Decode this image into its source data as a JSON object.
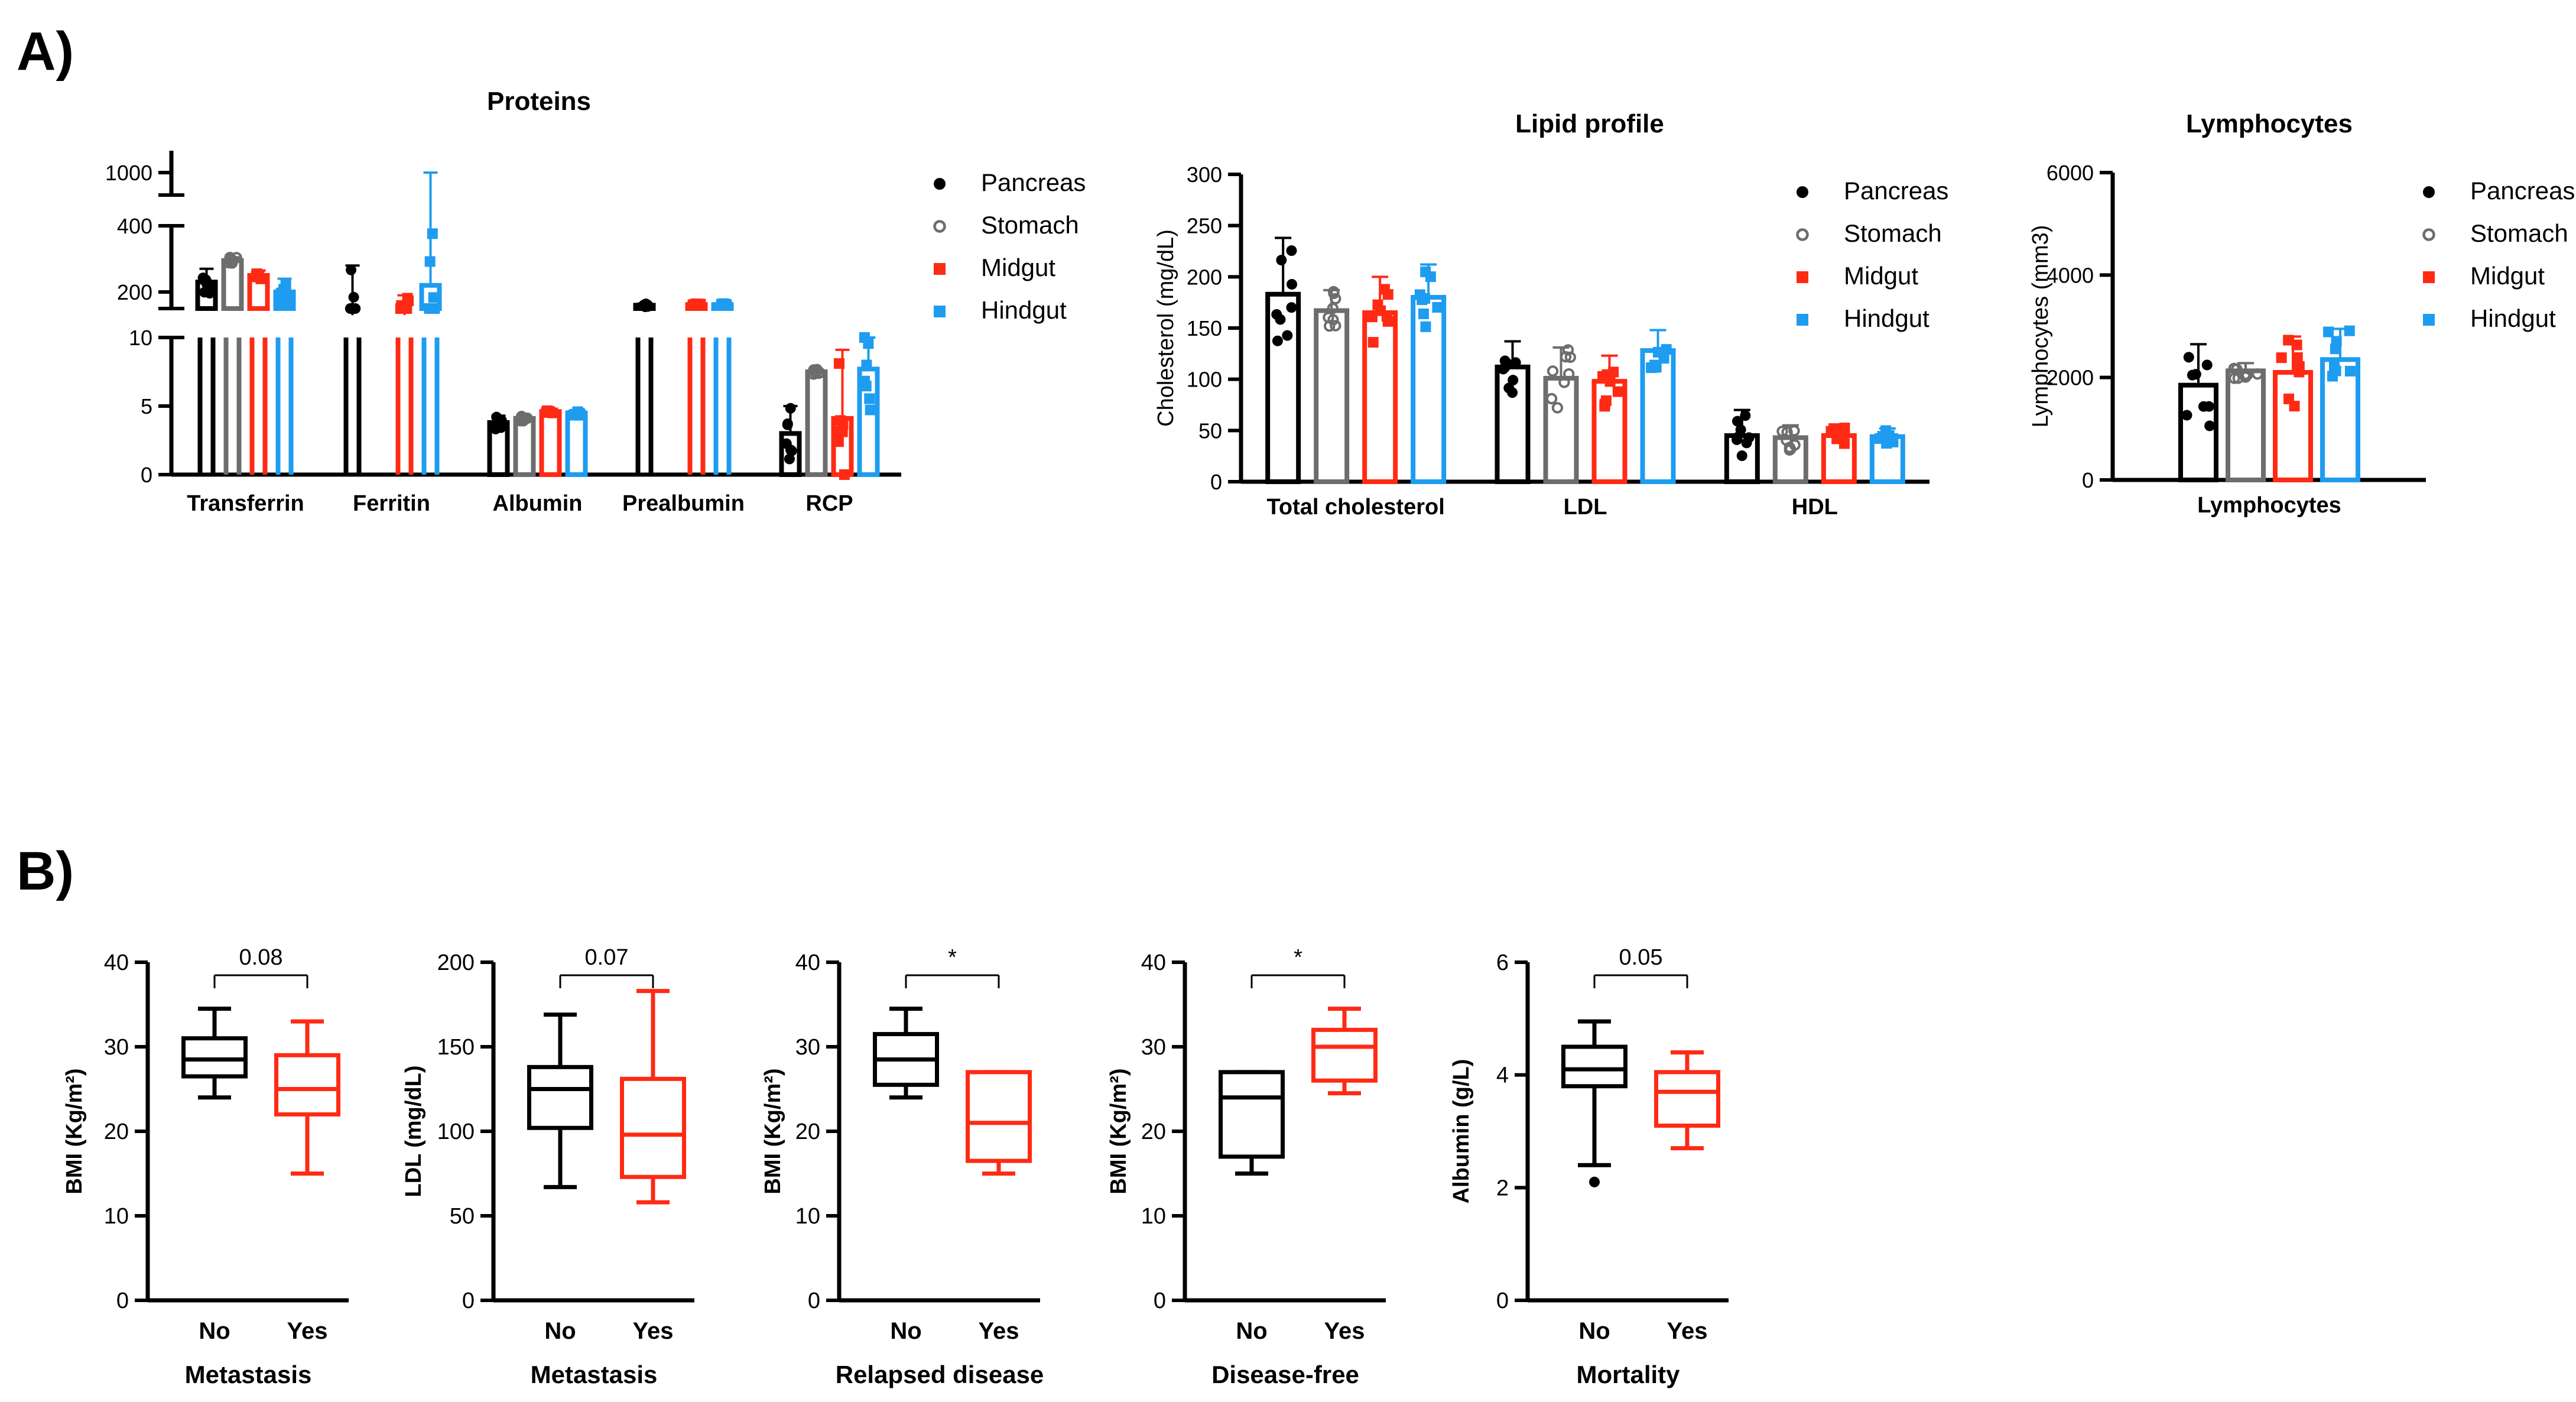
{
  "panel_labels": {
    "a": "A)",
    "b": "B)"
  },
  "colors": {
    "pancreas": "#000000",
    "stomach": "#6d6d6d",
    "midgut": "#ff2a14",
    "hindgut": "#1e9cf0"
  },
  "legend": [
    {
      "name": "Pancreas",
      "marker": "filled-circle",
      "color": "#000000"
    },
    {
      "name": "Stomach",
      "marker": "open-circle",
      "color": "#6d6d6d"
    },
    {
      "name": "Midgut",
      "marker": "square",
      "color": "#ff2a14"
    },
    {
      "name": "Hindgut",
      "marker": "square",
      "color": "#1e9cf0"
    }
  ],
  "chart_data": [
    {
      "id": "proteins",
      "type": "bar",
      "title": "Proteins",
      "ylabel": "",
      "categories": [
        "Transferrin",
        "Ferritin",
        "Albumin",
        "Prealbumin",
        "RCP"
      ],
      "axis": {
        "segments": [
          [
            0,
            10
          ],
          [
            150,
            400
          ],
          [
            1000,
            1000
          ]
        ],
        "ticks": [
          0,
          5,
          10,
          200,
          400,
          1000
        ]
      },
      "series": [
        {
          "name": "Pancreas",
          "values": [
            230,
            130,
            3.8,
            160,
            3.0
          ],
          "sd": [
            40,
            150,
            0.5,
            5,
            2
          ]
        },
        {
          "name": "Stomach",
          "values": [
            295,
            0,
            4.1,
            0,
            7.5
          ],
          "sd": [
            10,
            0,
            0.2,
            0,
            0.2
          ]
        },
        {
          "name": "Midgut",
          "values": [
            250,
            130,
            4.6,
            162,
            4.1
          ],
          "sd": [
            15,
            60,
            0.1,
            3,
            5
          ]
        },
        {
          "name": "Hindgut",
          "values": [
            200,
            220,
            4.5,
            162,
            7.7
          ],
          "sd": [
            40,
            420,
            0.2,
            3,
            4
          ]
        }
      ]
    },
    {
      "id": "lipid",
      "type": "bar",
      "title": "Lipid profile",
      "ylabel": "Cholesterol (mg/dL)",
      "categories": [
        "Total cholesterol",
        "LDL",
        "HDL"
      ],
      "ylim": [
        0,
        300
      ],
      "ticks": [
        0,
        50,
        100,
        150,
        200,
        250,
        300
      ],
      "series": [
        {
          "name": "Pancreas",
          "values": [
            183,
            112,
            45
          ],
          "sd": [
            55,
            25,
            25
          ]
        },
        {
          "name": "Stomach",
          "values": [
            167,
            101,
            43
          ],
          "sd": [
            20,
            30,
            12
          ]
        },
        {
          "name": "Midgut",
          "values": [
            165,
            98,
            45
          ],
          "sd": [
            35,
            25,
            8
          ]
        },
        {
          "name": "Hindgut",
          "values": [
            180,
            128,
            44
          ],
          "sd": [
            32,
            20,
            8
          ]
        }
      ]
    },
    {
      "id": "lymphocytes",
      "type": "bar",
      "title": "Lymphocytes",
      "ylabel": "Lymphocytes (mm3)",
      "categories": [
        "Lymphocytes"
      ],
      "ylim": [
        0,
        6000
      ],
      "ticks": [
        0,
        2000,
        4000,
        6000
      ],
      "series": [
        {
          "name": "Pancreas",
          "values": [
            1850
          ],
          "sd": [
            800
          ]
        },
        {
          "name": "Stomach",
          "values": [
            2130
          ],
          "sd": [
            150
          ]
        },
        {
          "name": "Midgut",
          "values": [
            2100
          ],
          "sd": [
            700
          ]
        },
        {
          "name": "Hindgut",
          "values": [
            2350
          ],
          "sd": [
            600
          ]
        }
      ]
    },
    {
      "id": "box1",
      "type": "box",
      "ylabel": "BMI (Kg/m²)",
      "xlabel": "Metastasis",
      "pvalue": "0.08",
      "ylim": [
        0,
        40
      ],
      "ticks": [
        0,
        10,
        20,
        30,
        40
      ],
      "groups": [
        {
          "label": "No",
          "color": "#000000",
          "min": 24,
          "q1": 26.5,
          "median": 28.5,
          "q3": 31,
          "max": 34.5,
          "outliers": []
        },
        {
          "label": "Yes",
          "color": "#ff2a14",
          "min": 15,
          "q1": 22,
          "median": 25,
          "q3": 29,
          "max": 33,
          "outliers": []
        }
      ]
    },
    {
      "id": "box2",
      "type": "box",
      "ylabel": "LDL (mg/dL)",
      "xlabel": "Metastasis",
      "pvalue": "0.07",
      "ylim": [
        0,
        200
      ],
      "ticks": [
        0,
        50,
        100,
        150,
        200
      ],
      "groups": [
        {
          "label": "No",
          "color": "#000000",
          "min": 67,
          "q1": 102,
          "median": 125,
          "q3": 138,
          "max": 169,
          "outliers": []
        },
        {
          "label": "Yes",
          "color": "#ff2a14",
          "min": 58,
          "q1": 73,
          "median": 98,
          "q3": 131,
          "max": 183,
          "outliers": []
        }
      ]
    },
    {
      "id": "box3",
      "type": "box",
      "ylabel": "BMI (Kg/m²)",
      "xlabel": "Relapsed disease",
      "pvalue": "*",
      "ylim": [
        0,
        40
      ],
      "ticks": [
        0,
        10,
        20,
        30,
        40
      ],
      "groups": [
        {
          "label": "No",
          "color": "#000000",
          "min": 24,
          "q1": 25.5,
          "median": 28.5,
          "q3": 31.5,
          "max": 34.5,
          "outliers": []
        },
        {
          "label": "Yes",
          "color": "#ff2a14",
          "min": 15,
          "q1": 16.5,
          "median": 21,
          "q3": 27,
          "max": 27,
          "outliers": []
        }
      ]
    },
    {
      "id": "box4",
      "type": "box",
      "ylabel": "BMI (Kg/m²)",
      "xlabel": "Disease-free",
      "pvalue": "*",
      "ylim": [
        0,
        40
      ],
      "ticks": [
        0,
        10,
        20,
        30,
        40
      ],
      "groups": [
        {
          "label": "No",
          "color": "#000000",
          "min": 15,
          "q1": 17,
          "median": 24,
          "q3": 27,
          "max": 27,
          "outliers": []
        },
        {
          "label": "Yes",
          "color": "#ff2a14",
          "min": 24.5,
          "q1": 26,
          "median": 30,
          "q3": 32,
          "max": 34.5,
          "outliers": []
        }
      ]
    },
    {
      "id": "box5",
      "type": "box",
      "ylabel": "Albumin (g/L)",
      "xlabel": "Mortality",
      "pvalue": "0.05",
      "ylim": [
        0,
        6
      ],
      "ticks": [
        0,
        2,
        4,
        6
      ],
      "groups": [
        {
          "label": "No",
          "color": "#000000",
          "min": 2.4,
          "q1": 3.8,
          "median": 4.1,
          "q3": 4.5,
          "max": 4.95,
          "outliers": [
            2.1
          ]
        },
        {
          "label": "Yes",
          "color": "#ff2a14",
          "min": 2.7,
          "q1": 3.1,
          "median": 3.7,
          "q3": 4.05,
          "max": 4.4,
          "outliers": []
        }
      ]
    }
  ]
}
